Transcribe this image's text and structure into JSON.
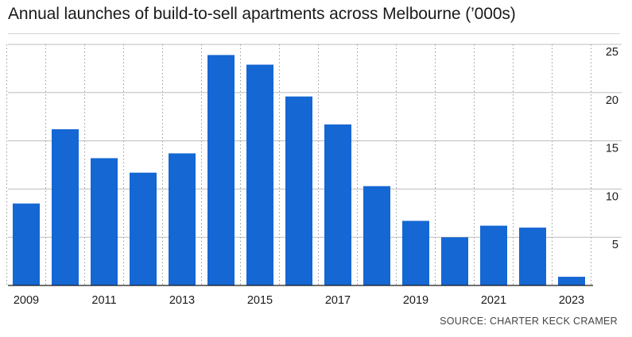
{
  "chart_data": {
    "type": "bar",
    "title": "Annual launches of build-to-sell apartments across Melbourne (’000s)",
    "categories": [
      "2009",
      "2010",
      "2011",
      "2012",
      "2013",
      "2014",
      "2015",
      "2016",
      "2017",
      "2018",
      "2019",
      "2020",
      "2021",
      "2022",
      "2023"
    ],
    "values": [
      8.5,
      16.2,
      13.2,
      11.7,
      13.7,
      23.9,
      22.9,
      19.6,
      16.7,
      10.3,
      6.7,
      5.0,
      6.2,
      6.0,
      0.9
    ],
    "x_tick_labels": [
      "2009",
      "2011",
      "2013",
      "2015",
      "2017",
      "2019",
      "2021",
      "2023"
    ],
    "y_ticks": [
      5,
      10,
      15,
      20,
      25
    ],
    "ylim": [
      0,
      25
    ],
    "xlabel": "",
    "ylabel": "",
    "grid": "horizontal-solid-and-vertical-dotted",
    "y_axis_position": "right",
    "bar_color": "#1567d3",
    "source": "SOURCE: CHARTER KECK CRAMER"
  }
}
